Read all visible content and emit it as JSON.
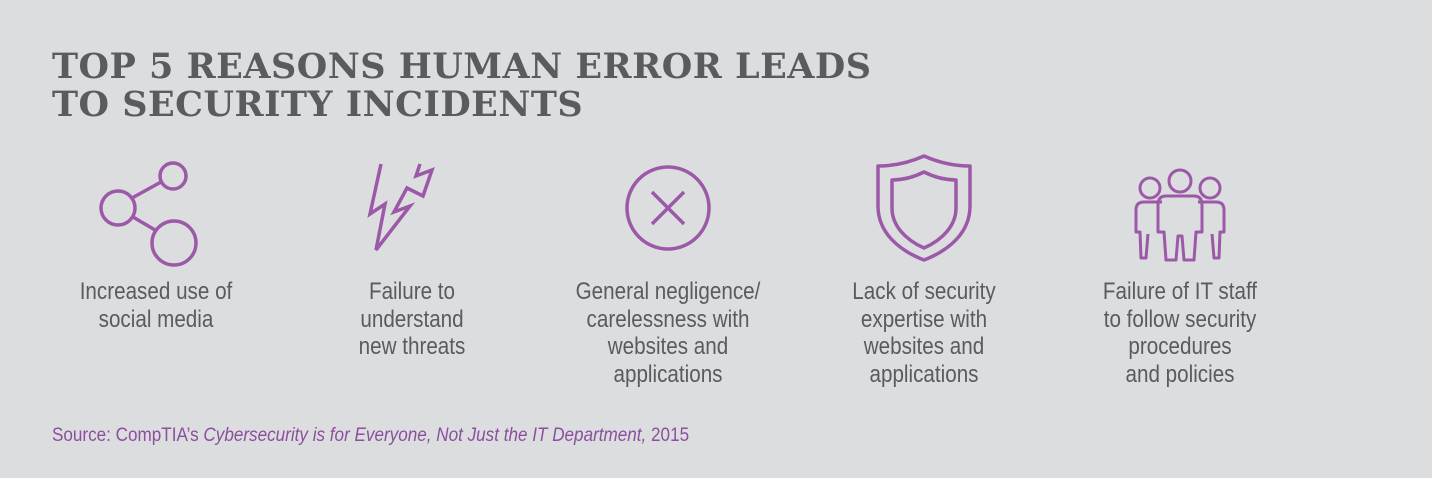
{
  "page": {
    "background": "#dcdddf",
    "accent_color": "#9b59a8",
    "text_color": "#5a5b5d"
  },
  "title": {
    "line1": "TOP 5 REASONS HUMAN ERROR LEADS",
    "line2": "TO SECURITY INCIDENTS"
  },
  "reasons": [
    {
      "icon": "share-icon",
      "label": "Increased use of\nsocial media"
    },
    {
      "icon": "lightning-bolt-icon",
      "label": "Failure to\nunderstand\nnew threats"
    },
    {
      "icon": "circle-x-icon",
      "label": "General negligence/\ncarelessness with\nwebsites and\napplications"
    },
    {
      "icon": "shield-icon",
      "label": "Lack of security\nexpertise with\nwebsites and\napplications"
    },
    {
      "icon": "people-group-icon",
      "label": "Failure of IT staff\nto follow security\nprocedures\nand policies"
    }
  ],
  "source": {
    "prefix": "Source: CompTIA’s ",
    "title": "Cybersecurity is for Everyone, Not Just the IT Department,",
    "suffix": " 2015"
  }
}
